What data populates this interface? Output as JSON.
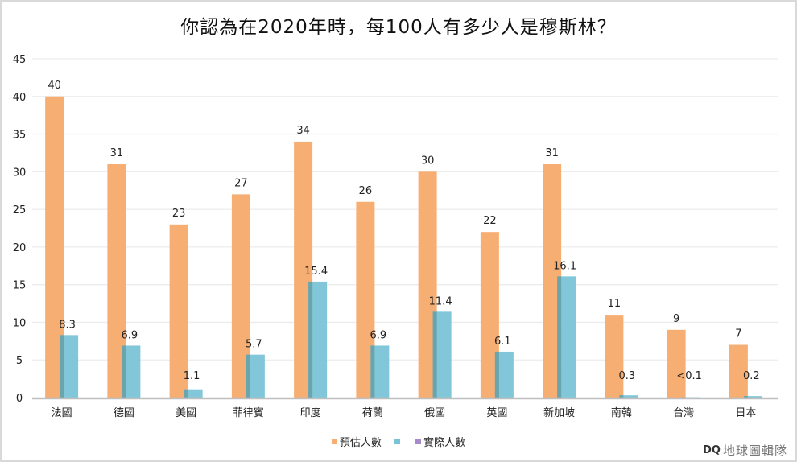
{
  "chart_data": {
    "type": "bar",
    "title": "你認為在2020年時，每100人有多少人是穆斯林？",
    "xlabel": "",
    "ylabel": "",
    "ylim": [
      0,
      45
    ],
    "yticks": [
      0,
      5,
      10,
      15,
      20,
      25,
      30,
      35,
      40,
      45
    ],
    "ytick_labels": [
      "0",
      "5",
      "10",
      "15",
      "20",
      "25",
      "30",
      "35",
      "40",
      "45"
    ],
    "grid": true,
    "categories": [
      "法國",
      "德國",
      "美國",
      "菲律賓",
      "印度",
      "荷蘭",
      "俄國",
      "英國",
      "新加坡",
      "南韓",
      "台灣",
      "日本"
    ],
    "series": [
      {
        "name": "預估人數",
        "color": "#f7ae73",
        "values": [
          40,
          31,
          23,
          27,
          34,
          26,
          30,
          22,
          31,
          11,
          9,
          7
        ],
        "labels": [
          "40",
          "31",
          "23",
          "27",
          "34",
          "26",
          "30",
          "22",
          "31",
          "11",
          "9",
          "7"
        ]
      },
      {
        "name": "實際人數",
        "color": "#78c3d6",
        "values": [
          8.3,
          6.9,
          1.1,
          5.7,
          15.4,
          6.9,
          11.4,
          6.1,
          16.1,
          0.3,
          0.05,
          0.2
        ],
        "labels": [
          "8.3",
          "6.9",
          "1.1",
          "5.7",
          "15.4",
          "6.9",
          "11.4",
          "6.1",
          "16.1",
          "0.3",
          "<0.1",
          "0.2"
        ]
      }
    ],
    "legend": {
      "position": "bottom",
      "entries": [
        {
          "label": "預估人數",
          "color": "#f7ae73"
        },
        {
          "label": "",
          "color": "#78c3d6"
        },
        {
          "label": "實際人數",
          "color": "#a58cc9"
        }
      ]
    }
  },
  "watermark": {
    "logo": "DQ",
    "text": "地球圖輯隊"
  }
}
